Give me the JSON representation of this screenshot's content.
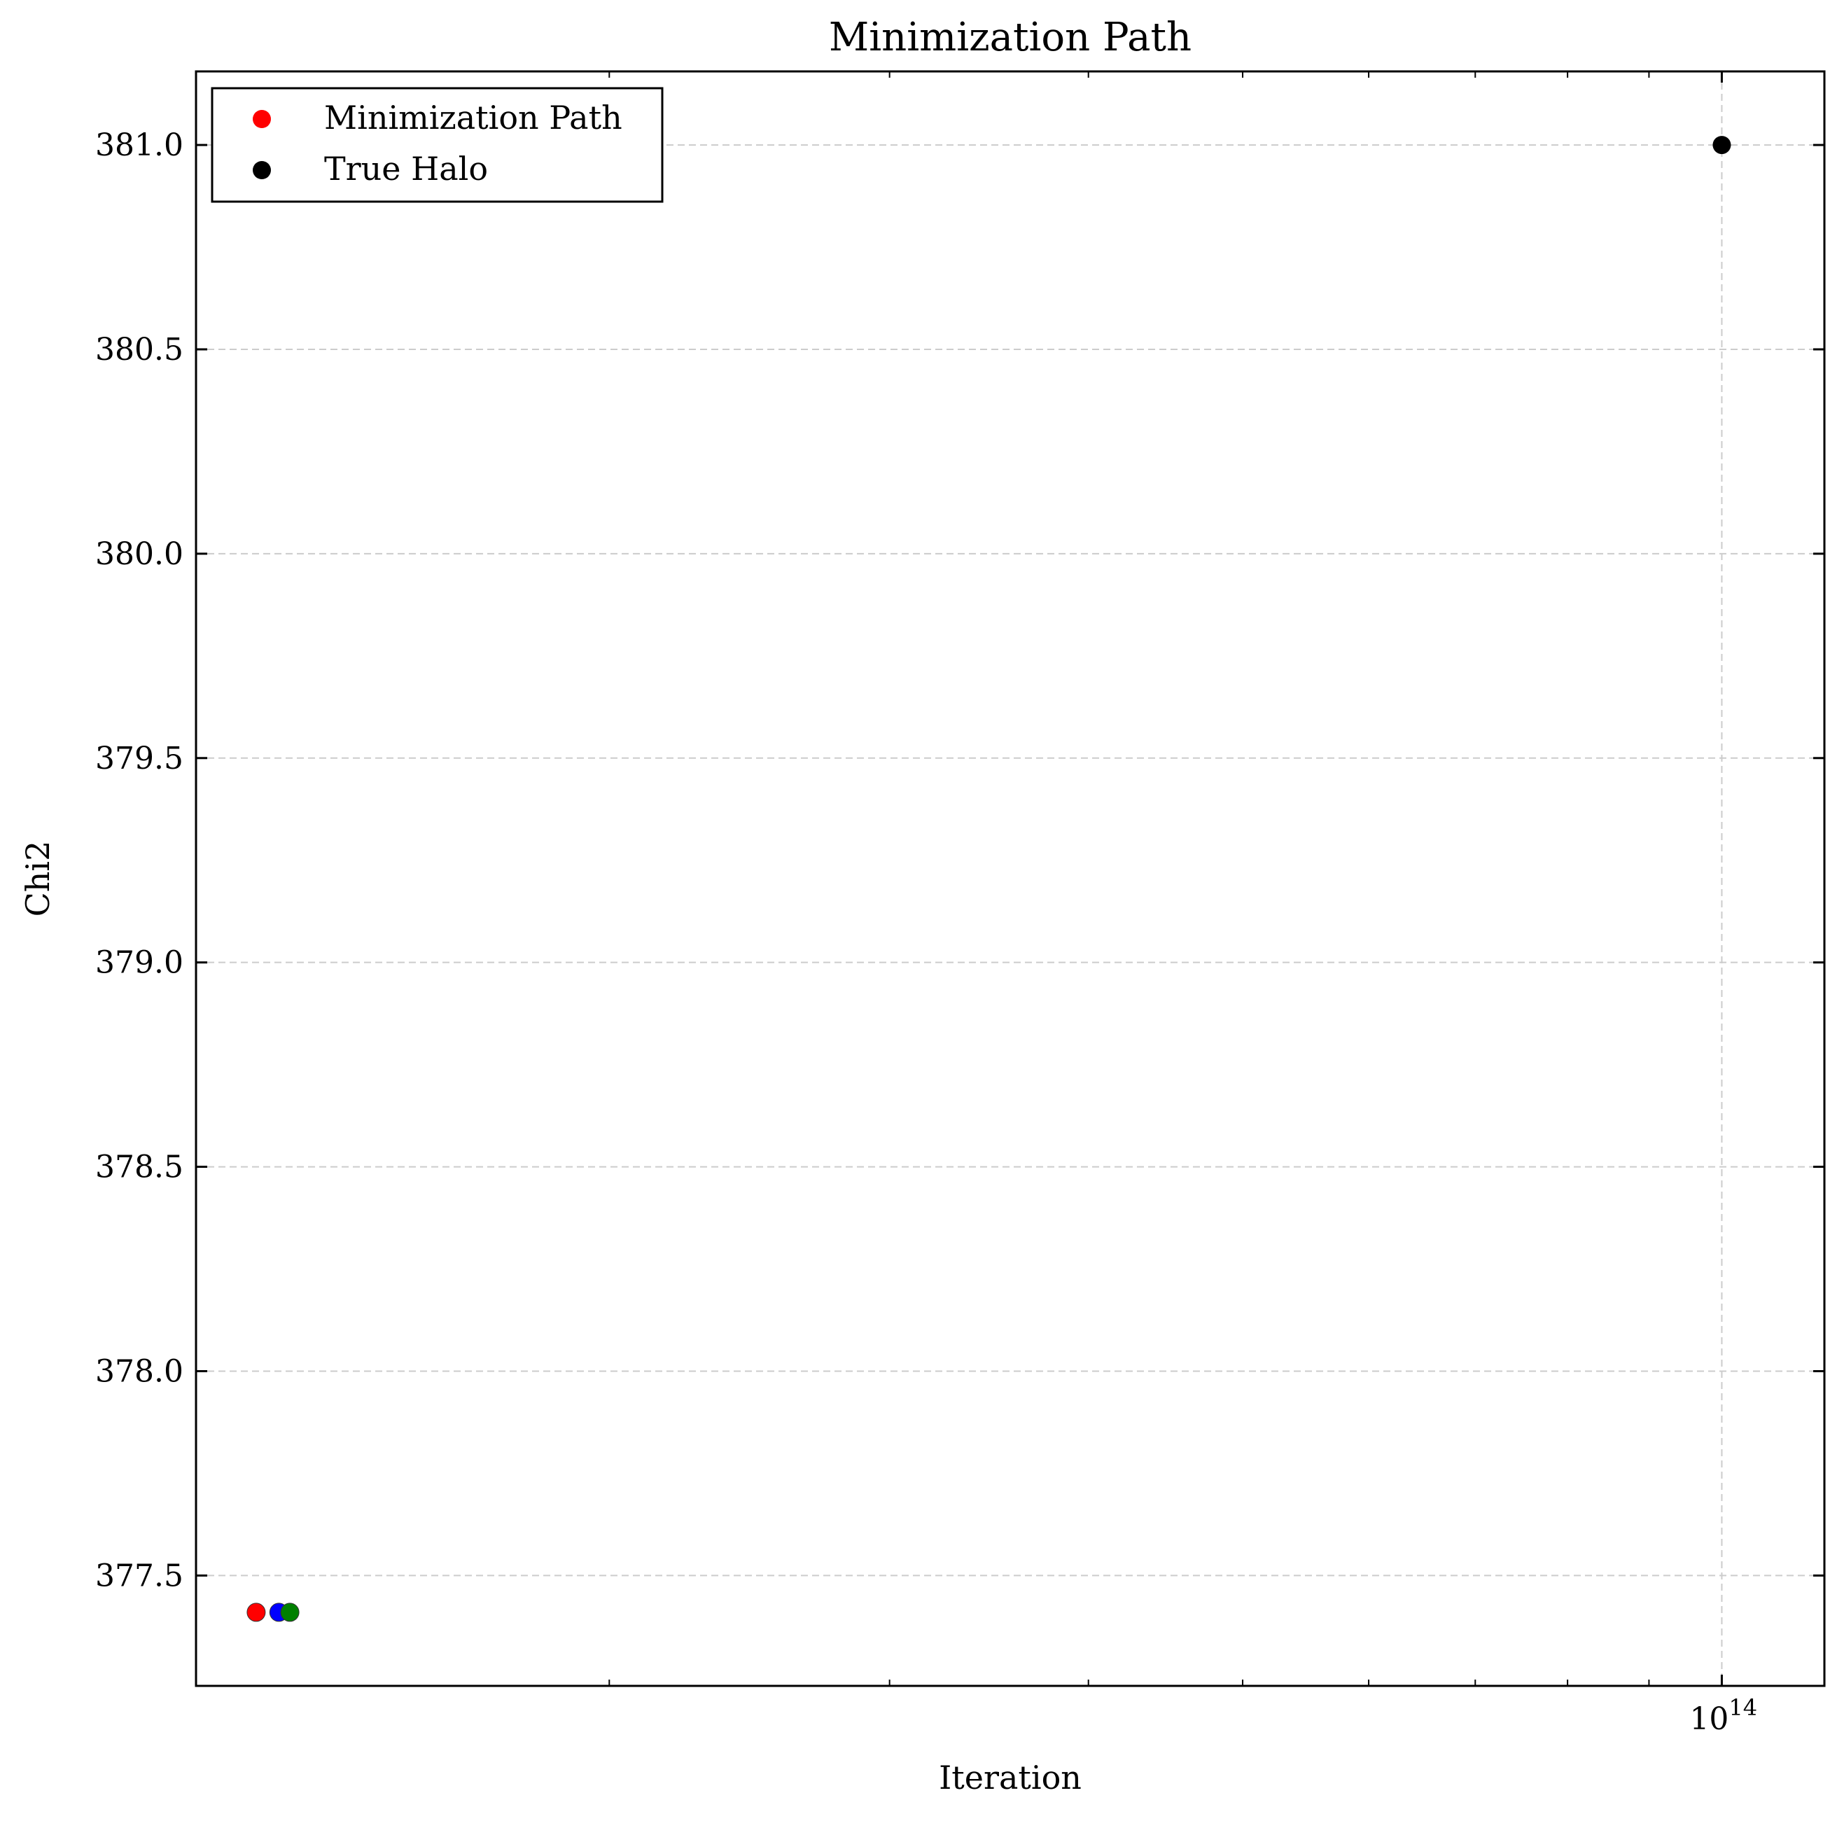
{
  "chart_data": {
    "type": "scatter",
    "title": "Minimization Path",
    "xlabel": "Iteration",
    "ylabel": "Chi2",
    "x_scale": "log",
    "xlim": [
      11000000000000,
      116000000000000
    ],
    "ylim": [
      377.23,
      381.18
    ],
    "x_tick_labels": [
      {
        "value": 100000000000000,
        "base": "10",
        "exponent": "14"
      }
    ],
    "x_minor_ticks": [
      20000000000000,
      30000000000000,
      40000000000000,
      50000000000000,
      60000000000000,
      70000000000000,
      80000000000000,
      90000000000000
    ],
    "y_ticks": [
      377.5,
      378.0,
      378.5,
      379.0,
      379.5,
      380.0,
      380.5,
      381.0
    ],
    "y_tick_labels": [
      "377.5",
      "378.0",
      "378.5",
      "379.0",
      "379.5",
      "380.0",
      "380.5",
      "381.0"
    ],
    "grid": true,
    "legend_position": "top-left",
    "series": [
      {
        "name": "Minimization Path",
        "points": [
          {
            "x": 12000000000000,
            "y": 377.41,
            "color": "#ff0000"
          },
          {
            "x": 12400000000000,
            "y": 377.41,
            "color": "#0000ff"
          },
          {
            "x": 12600000000000,
            "y": 377.41,
            "color": "#008000"
          }
        ]
      },
      {
        "name": "True Halo",
        "points": [
          {
            "x": 100000000000000,
            "y": 381.0,
            "color": "#000000"
          }
        ]
      }
    ],
    "legend": [
      {
        "label": "Minimization Path",
        "color": "#ff0000"
      },
      {
        "label": "True Halo",
        "color": "#000000"
      }
    ]
  }
}
